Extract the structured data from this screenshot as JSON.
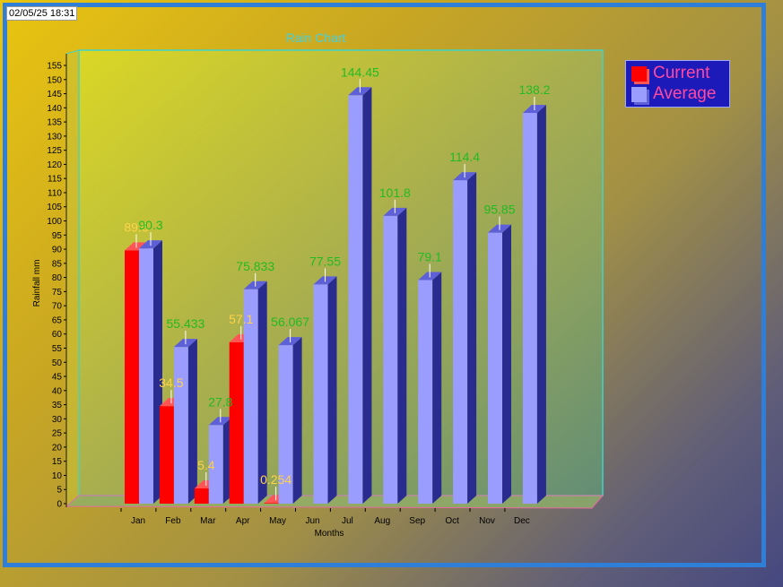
{
  "timestamp": "02/05/25 18:31",
  "chart_data": {
    "type": "bar",
    "title": "Rain Chart",
    "xlabel": "Months",
    "ylabel": "Rainfall mm",
    "ylim": [
      0,
      155
    ],
    "ytick_step": 5,
    "categories": [
      "Jan",
      "Feb",
      "Mar",
      "Apr",
      "May",
      "Jun",
      "Jul",
      "Aug",
      "Sep",
      "Oct",
      "Nov",
      "Dec"
    ],
    "series": [
      {
        "name": "Current",
        "color": "#ff0000",
        "label_color": "#ffd24a",
        "values": [
          89.6,
          34.5,
          5.4,
          57.1,
          0.254,
          null,
          null,
          null,
          null,
          null,
          null,
          null
        ],
        "labels": [
          "89.6",
          "34.5",
          "5.4",
          "57.1",
          "0.254",
          "",
          "",
          "",
          "",
          "",
          "",
          ""
        ]
      },
      {
        "name": "Average",
        "color": "#9a9dfd",
        "label_color": "#22bb22",
        "values": [
          90.3,
          55.433,
          27.8,
          75.833,
          56.067,
          77.55,
          144.45,
          101.8,
          79.1,
          114.4,
          95.85,
          138.2
        ],
        "labels": [
          "90.3",
          "55.433",
          "27.8",
          "75.833",
          "56.067",
          "77.55",
          "144.45",
          "101.8",
          "79.1",
          "114.4",
          "95.85",
          "138.2"
        ]
      }
    ],
    "legend_position": "top-right",
    "grid": false
  }
}
